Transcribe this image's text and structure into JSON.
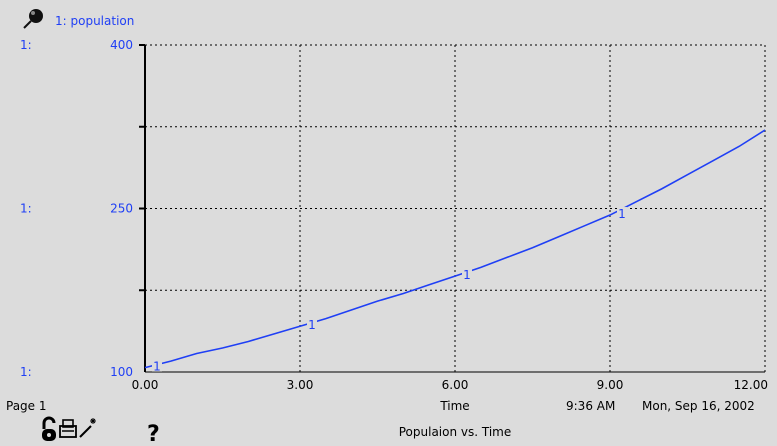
{
  "legend": {
    "entry": "1: population",
    "marker": "1"
  },
  "footer": {
    "page_label": "Page 1",
    "time_stamp": "9:36 AM",
    "date_stamp": "Mon, Sep 16, 2002",
    "graph_title": "Populaion vs. Time"
  },
  "icons": [
    "pin-icon",
    "lock-icon",
    "printer-icon",
    "magic-wand-icon",
    "help-icon"
  ],
  "colors": {
    "series": "#1f3ff5",
    "background": "#dcdcdc",
    "axis": "#000000"
  },
  "chart_data": {
    "type": "line",
    "title": "Populaion vs. Time",
    "xlabel": "Time",
    "ylabel": "",
    "xlim": [
      0,
      12
    ],
    "ylim": [
      100,
      400
    ],
    "x_ticks": [
      "0.00",
      "3.00",
      "6.00",
      "9.00",
      "12.00"
    ],
    "y_ticks": [
      "100",
      "250",
      "400"
    ],
    "y_tick_prefix": "1:",
    "grid": true,
    "series": [
      {
        "name": "1: population",
        "marker_label": "1",
        "x": [
          0,
          0.5,
          1,
          1.5,
          2,
          2.5,
          3,
          3.5,
          4,
          4.5,
          5,
          5.5,
          6,
          6.5,
          7,
          7.5,
          8,
          8.5,
          9,
          9.5,
          10,
          10.5,
          11,
          11.5,
          12
        ],
        "values": [
          104,
          110,
          117,
          122,
          128,
          135,
          142,
          149,
          157,
          165,
          172,
          180,
          188,
          196,
          205,
          214,
          224,
          234,
          244,
          256,
          268,
          281,
          294,
          307,
          322
        ]
      }
    ]
  }
}
